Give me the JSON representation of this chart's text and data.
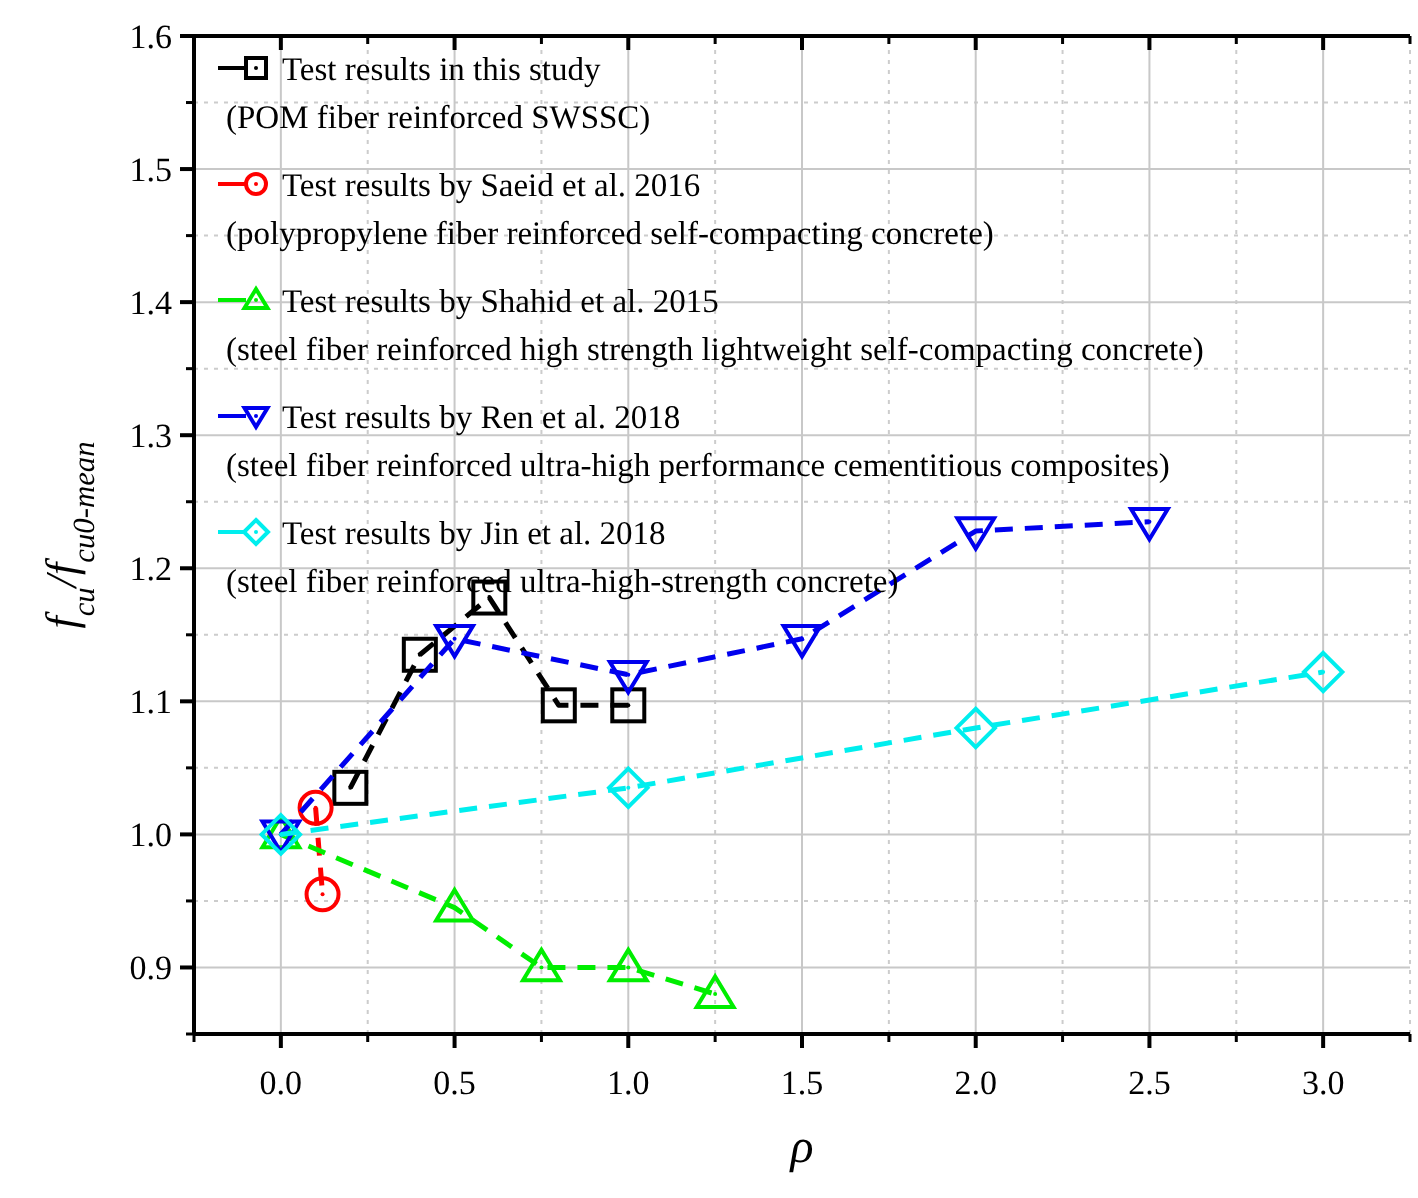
{
  "chart_data": {
    "type": "line",
    "xlabel": "ρ",
    "ylabel": "f$_{cu}$/f$_{cu0-mean}$",
    "xlim": [
      -0.25,
      3.25
    ],
    "ylim": [
      0.85,
      1.6
    ],
    "xticks": [
      {
        "value": 0,
        "label": "0.0"
      },
      {
        "value": 0.5,
        "label": "0.5"
      },
      {
        "value": 1,
        "label": "1.0"
      },
      {
        "value": 1.5,
        "label": "1.5"
      },
      {
        "value": 2,
        "label": "2.0"
      },
      {
        "value": 2.5,
        "label": "2.5"
      },
      {
        "value": 3,
        "label": "3.0"
      }
    ],
    "yticks": [
      {
        "value": 0.9,
        "label": "0.9"
      },
      {
        "value": 1.0,
        "label": "1.0"
      },
      {
        "value": 1.1,
        "label": "1.1"
      },
      {
        "value": 1.2,
        "label": "1.2"
      },
      {
        "value": 1.3,
        "label": "1.3"
      },
      {
        "value": 1.4,
        "label": "1.4"
      },
      {
        "value": 1.5,
        "label": "1.5"
      },
      {
        "value": 1.6,
        "label": "1.6"
      }
    ],
    "grid": true,
    "legend": "top left",
    "line_style": "dashed",
    "series": [
      {
        "name": "Test results in this study\n(POM fiber reinforced SWSSC)",
        "color": "#000000",
        "marker": "square",
        "x": [
          0.2,
          0.4,
          0.6,
          0.8,
          1.0
        ],
        "values": [
          1.035,
          1.135,
          1.178,
          1.097,
          1.097
        ]
      },
      {
        "name": "Test results by Saeid et al.  2016\n(polypropylene fiber reinforced self-compacting concrete)",
        "color": "#ff0000",
        "marker": "circle",
        "x": [
          0.1,
          0.12
        ],
        "values": [
          1.02,
          0.955
        ]
      },
      {
        "name": "Test results by Shahid et al.  2015\n(steel fiber reinforced high strength lightweight self-compacting concrete)",
        "color": "#00ee00",
        "marker": "triangle",
        "x": [
          0,
          0.5,
          0.75,
          1.0,
          1.25
        ],
        "values": [
          1.0,
          0.945,
          0.9,
          0.9,
          0.88
        ]
      },
      {
        "name": "Test results by Ren et al.  2018\n(steel fiber reinforced ultra-high performance cementitious composites)",
        "color": "#0000ee",
        "marker": "triangle-down",
        "x": [
          0,
          0.5,
          1.0,
          1.5,
          2.0,
          2.5
        ],
        "values": [
          1.0,
          1.147,
          1.12,
          1.147,
          1.228,
          1.235
        ]
      },
      {
        "name": "Test results by Jin et al.  2018\n(steel fiber reinforced ultra-high-strength concrete)",
        "color": "#00eeee",
        "marker": "diamond",
        "x": [
          0,
          1,
          2,
          3
        ],
        "values": [
          1.0,
          1.035,
          1.08,
          1.122
        ]
      }
    ]
  }
}
